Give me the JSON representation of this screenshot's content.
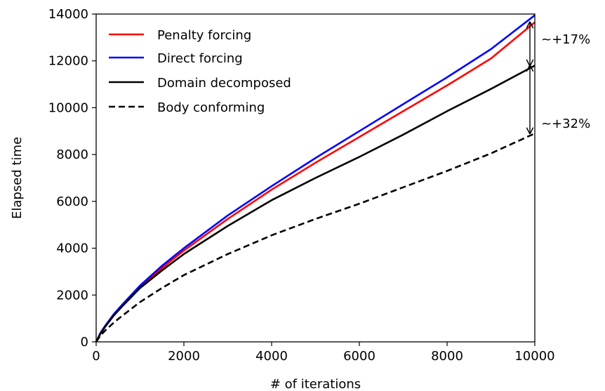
{
  "chart_data": {
    "type": "line",
    "xlabel": "# of iterations",
    "ylabel": "Elapsed time",
    "xlim": [
      0,
      10000
    ],
    "ylim": [
      0,
      14000
    ],
    "xticks": [
      "0",
      "2000",
      "4000",
      "6000",
      "8000",
      "10000"
    ],
    "yticks": [
      "0",
      "2000",
      "4000",
      "6000",
      "8000",
      "10000",
      "12000",
      "14000"
    ],
    "grid": false,
    "legend_position": "top-left",
    "x": [
      0,
      100,
      200,
      400,
      600,
      1000,
      1500,
      2000,
      3000,
      4000,
      5000,
      6000,
      7000,
      8000,
      9000,
      10000
    ],
    "series": [
      {
        "name": "Penalty forcing",
        "color": "#ff0000",
        "style": "solid",
        "values": [
          0,
          380,
          650,
          1150,
          1550,
          2350,
          3150,
          3900,
          5250,
          6500,
          7650,
          8750,
          9850,
          10950,
          12100,
          13650
        ]
      },
      {
        "name": "Direct forcing",
        "color": "#0000ff",
        "style": "solid",
        "values": [
          0,
          390,
          670,
          1180,
          1600,
          2400,
          3250,
          4000,
          5400,
          6650,
          7850,
          9000,
          10150,
          11300,
          12500,
          13950
        ]
      },
      {
        "name": "Domain decomposed",
        "color": "#000000",
        "style": "solid",
        "values": [
          0,
          360,
          630,
          1120,
          1530,
          2300,
          3050,
          3750,
          4950,
          6050,
          7000,
          7900,
          8850,
          9850,
          10800,
          11800
        ]
      },
      {
        "name": "Body conforming",
        "color": "#000000",
        "style": "dashed",
        "values": [
          0,
          280,
          470,
          820,
          1120,
          1700,
          2300,
          2850,
          3750,
          4550,
          5250,
          5900,
          6600,
          7300,
          8050,
          8900
        ]
      }
    ],
    "annotations": [
      {
        "text": "~+17%",
        "x": 10000,
        "y_from": 11800,
        "y_to": 13650
      },
      {
        "text": "~+32%",
        "x": 10000,
        "y_from": 8900,
        "y_to": 11800
      }
    ]
  }
}
